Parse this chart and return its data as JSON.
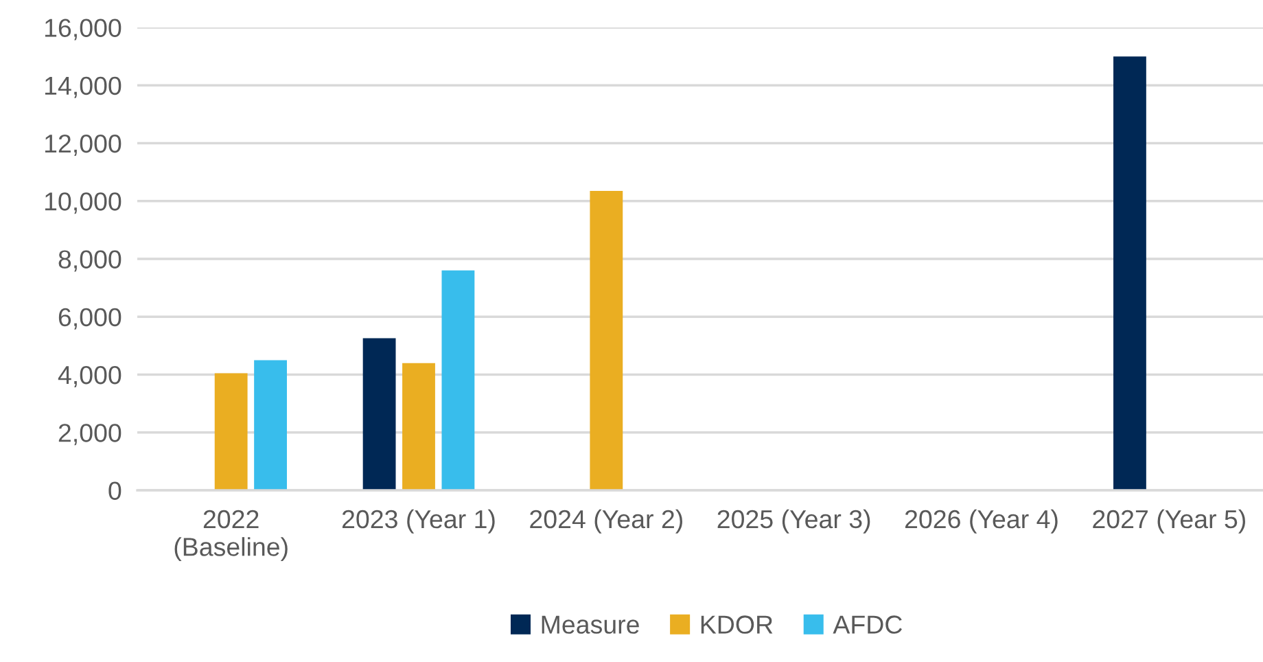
{
  "chart_data": {
    "type": "bar",
    "categories": [
      "2022\n(Baseline)",
      "2023 (Year 1)",
      "2024 (Year 2)",
      "2025 (Year 3)",
      "2026 (Year 4)",
      "2027 (Year 5)"
    ],
    "series": [
      {
        "name": "Measure",
        "color": "#002855",
        "values": [
          null,
          5260,
          null,
          null,
          null,
          15000
        ]
      },
      {
        "name": "KDOR",
        "color": "#eaae22",
        "values": [
          4050,
          4400,
          10350,
          null,
          null,
          null
        ]
      },
      {
        "name": "AFDC",
        "color": "#38bdec",
        "values": [
          4500,
          7600,
          null,
          null,
          null,
          null
        ]
      }
    ],
    "ylim": [
      0,
      16000
    ],
    "yticks": [
      {
        "value": 0,
        "label": "0"
      },
      {
        "value": 2000,
        "label": "2,000"
      },
      {
        "value": 4000,
        "label": "4,000"
      },
      {
        "value": 6000,
        "label": "6,000"
      },
      {
        "value": 8000,
        "label": "8,000"
      },
      {
        "value": 10000,
        "label": "10,000"
      },
      {
        "value": 12000,
        "label": "12,000"
      },
      {
        "value": 14000,
        "label": "14,000"
      },
      {
        "value": 16000,
        "label": "16,000"
      }
    ],
    "grid": "y",
    "legend": "bottom"
  }
}
